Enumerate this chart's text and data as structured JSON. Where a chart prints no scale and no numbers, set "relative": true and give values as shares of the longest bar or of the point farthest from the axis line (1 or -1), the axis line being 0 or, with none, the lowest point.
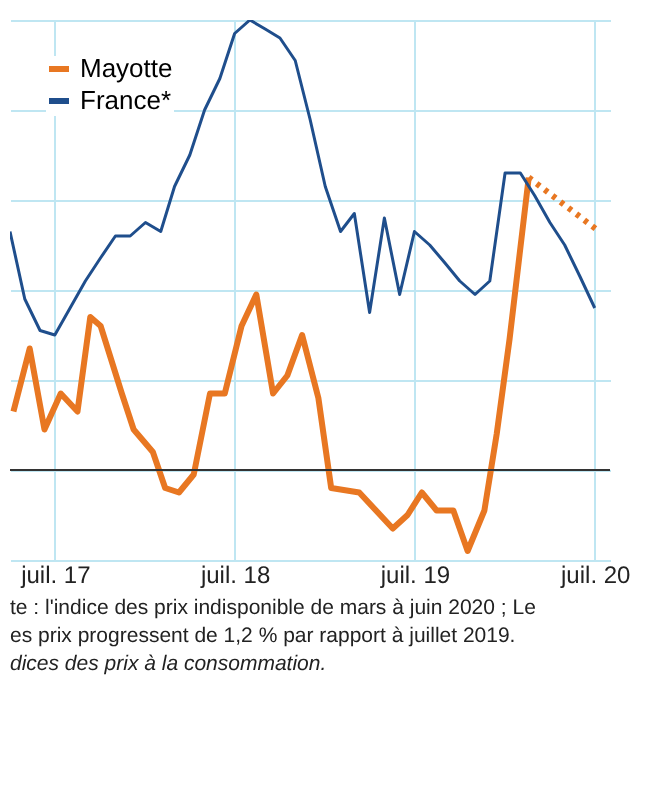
{
  "chart_data": {
    "type": "line",
    "relative": true,
    "grid": true,
    "legend": "top left",
    "line_style": "solid",
    "marker": "none",
    "xlim": [
      "2017-04-01",
      "2020-08-01"
    ],
    "xticks": [
      {
        "value": "2017-07",
        "label": "juil. 17"
      },
      {
        "value": "2018-07",
        "label": "juil. 18"
      },
      {
        "value": "2019-07",
        "label": "juil. 19"
      },
      {
        "value": "2020-07",
        "label": "juil. 20"
      }
    ],
    "series": [
      {
        "name": "Mayotte",
        "color": "#e87722",
        "x": [
          "2017-04-08",
          "2017-05-11",
          "2017-06-10",
          "2017-07-13",
          "2017-08-16",
          "2017-09-11",
          "2017-10-02",
          "2017-11-14",
          "2017-12-08",
          "2018-01-16",
          "2018-02-10",
          "2018-03-10",
          "2018-04-09",
          "2018-05-12",
          "2018-06-11",
          "2018-07-15",
          "2018-08-14",
          "2018-09-17",
          "2018-10-16",
          "2018-11-15",
          "2018-12-18",
          "2019-01-13",
          "2019-03-11",
          "2019-05-18",
          "2019-06-17",
          "2019-07-16",
          "2019-08-15",
          "2019-09-18",
          "2019-10-17",
          "2019-11-20",
          "2019-12-15",
          "2020-01-10",
          "2020-02-05",
          "2020-02-18"
        ],
        "values": [
          0.13,
          0.27,
          0.09,
          0.17,
          0.13,
          0.34,
          0.32,
          0.17,
          0.09,
          0.04,
          -0.04,
          -0.05,
          -0.01,
          0.17,
          0.17,
          0.32,
          0.39,
          0.17,
          0.21,
          0.3,
          0.16,
          -0.04,
          -0.05,
          -0.13,
          -0.1,
          -0.05,
          -0.09,
          -0.09,
          -0.18,
          -0.09,
          0.08,
          0.29,
          0.53,
          0.65
        ]
      },
      {
        "name": "France*",
        "color": "#1f4e8c",
        "x": [
          "2017-04",
          "2017-05",
          "2017-06",
          "2017-07",
          "2017-08",
          "2017-09",
          "2017-10",
          "2017-11",
          "2017-12",
          "2018-01",
          "2018-02",
          "2018-03",
          "2018-04",
          "2018-05",
          "2018-06",
          "2018-07",
          "2018-08",
          "2018-09",
          "2018-10",
          "2018-11",
          "2018-12",
          "2019-01",
          "2019-02",
          "2019-03",
          "2019-04",
          "2019-05",
          "2019-06",
          "2019-07",
          "2019-08",
          "2019-09",
          "2019-10",
          "2019-11",
          "2019-12",
          "2020-01",
          "2020-02",
          "2020-03",
          "2020-04",
          "2020-05",
          "2020-06",
          "2020-07"
        ],
        "values": [
          0.53,
          0.38,
          0.31,
          0.3,
          0.36,
          0.42,
          0.47,
          0.52,
          0.52,
          0.55,
          0.53,
          0.63,
          0.7,
          0.8,
          0.87,
          0.97,
          1.0,
          0.98,
          0.96,
          0.91,
          0.78,
          0.63,
          0.53,
          0.57,
          0.35,
          0.56,
          0.39,
          0.53,
          0.5,
          0.46,
          0.42,
          0.39,
          0.42,
          0.66,
          0.66,
          0.61,
          0.55,
          0.5,
          0.43,
          0.36
        ]
      },
      {
        "color": "#e87722",
        "line_style": "dotted",
        "x": [
          "2020-02-18",
          "2020-07-10"
        ],
        "values": [
          0.65,
          0.53
        ]
      }
    ],
    "annotations": [
      "te : l'indice des prix indisponible de mars à juin 2020 ; Le",
      "es prix progressent de 1,2 % par rapport à juillet 2019.",
      "dices des prix à la consommation."
    ]
  }
}
